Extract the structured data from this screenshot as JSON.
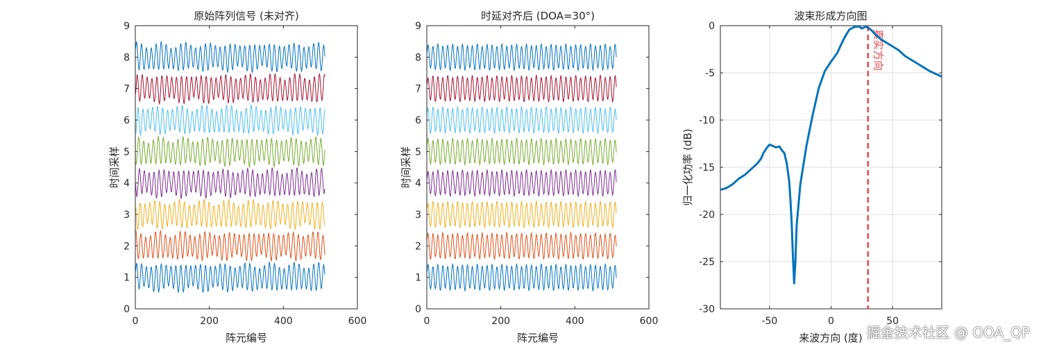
{
  "colors": {
    "axis": "#262626",
    "grid": "#dfdfdf",
    "trace_palette": [
      "#0072BD",
      "#D95319",
      "#EDB120",
      "#7E2F8E",
      "#77AC30",
      "#4DBEEE",
      "#A2142F",
      "#0072BD"
    ],
    "beam": "#0072BD",
    "true_dir": "#E8474B"
  },
  "watermark": "掘金技术社区 @ OOA_QP",
  "chart_data": [
    {
      "type": "line",
      "title": "原始阵列信号 (未对齐)",
      "xlabel": "阵元编号",
      "ylabel": "时间采样",
      "xlim": [
        0,
        600
      ],
      "ylim": [
        0,
        9
      ],
      "xticks": [
        "0",
        "200",
        "400",
        "600"
      ],
      "yticks": [
        "0",
        "1",
        "2",
        "3",
        "4",
        "5",
        "6",
        "7",
        "8",
        "9"
      ],
      "grid": false,
      "series": [
        {
          "offset": 1,
          "amplitude": 0.38,
          "phase": 0.0,
          "x_range": [
            1,
            512
          ]
        },
        {
          "offset": 2,
          "amplitude": 0.38,
          "phase": 0.9,
          "x_range": [
            1,
            512
          ]
        },
        {
          "offset": 3,
          "amplitude": 0.38,
          "phase": 1.8,
          "x_range": [
            1,
            512
          ]
        },
        {
          "offset": 4,
          "amplitude": 0.38,
          "phase": 2.7,
          "x_range": [
            1,
            512
          ]
        },
        {
          "offset": 5,
          "amplitude": 0.38,
          "phase": 3.6,
          "x_range": [
            1,
            512
          ]
        },
        {
          "offset": 6,
          "amplitude": 0.38,
          "phase": 4.5,
          "x_range": [
            1,
            512
          ]
        },
        {
          "offset": 7,
          "amplitude": 0.38,
          "phase": 5.4,
          "x_range": [
            1,
            512
          ]
        },
        {
          "offset": 8,
          "amplitude": 0.38,
          "phase": 6.3,
          "x_range": [
            1,
            512
          ]
        }
      ]
    },
    {
      "type": "line",
      "title": "时延对齐后 (DOA=30°)",
      "xlabel": "阵元编号",
      "ylabel": "时间采样",
      "xlim": [
        0,
        600
      ],
      "ylim": [
        0,
        9
      ],
      "xticks": [
        "0",
        "200",
        "400",
        "600"
      ],
      "yticks": [
        "0",
        "1",
        "2",
        "3",
        "4",
        "5",
        "6",
        "7",
        "8",
        "9"
      ],
      "grid": false,
      "series": [
        {
          "offset": 1,
          "amplitude": 0.38,
          "phase": 0.0,
          "x_range": [
            1,
            512
          ]
        },
        {
          "offset": 2,
          "amplitude": 0.38,
          "phase": 0.0,
          "x_range": [
            1,
            512
          ]
        },
        {
          "offset": 3,
          "amplitude": 0.38,
          "phase": 0.0,
          "x_range": [
            1,
            512
          ]
        },
        {
          "offset": 4,
          "amplitude": 0.38,
          "phase": 0.0,
          "x_range": [
            1,
            512
          ]
        },
        {
          "offset": 5,
          "amplitude": 0.38,
          "phase": 0.0,
          "x_range": [
            1,
            512
          ]
        },
        {
          "offset": 6,
          "amplitude": 0.38,
          "phase": 0.0,
          "x_range": [
            1,
            512
          ]
        },
        {
          "offset": 7,
          "amplitude": 0.38,
          "phase": 0.0,
          "x_range": [
            1,
            512
          ]
        },
        {
          "offset": 8,
          "amplitude": 0.38,
          "phase": 0.0,
          "x_range": [
            1,
            512
          ]
        }
      ]
    },
    {
      "type": "line",
      "title": "波束形成方向图",
      "xlabel": "来波方向 (度)",
      "ylabel": "归一化功率 (dB)",
      "xlim": [
        -90,
        90
      ],
      "ylim": [
        -30,
        0
      ],
      "xticks": [
        {
          "v": -50,
          "t": "-50"
        },
        {
          "v": 0,
          "t": "0"
        },
        {
          "v": 50,
          "t": "50"
        }
      ],
      "yticks": [
        {
          "v": 0,
          "t": "0"
        },
        {
          "v": -5,
          "t": "-5"
        },
        {
          "v": -10,
          "t": "-10"
        },
        {
          "v": -15,
          "t": "-15"
        },
        {
          "v": -20,
          "t": "-20"
        },
        {
          "v": -25,
          "t": "-25"
        },
        {
          "v": -30,
          "t": "-30"
        }
      ],
      "grid": true,
      "series": [
        {
          "name": "",
          "x": [
            -90,
            -85,
            -80,
            -75,
            -70,
            -65,
            -60,
            -57,
            -55,
            -52,
            -50,
            -48,
            -45,
            -42,
            -40,
            -38,
            -36,
            -34,
            -33,
            -32,
            -31,
            -30,
            -29,
            -28,
            -25,
            -20,
            -15,
            -10,
            -5,
            0,
            5,
            10,
            13,
            15,
            18,
            20,
            23,
            25,
            28,
            30,
            33,
            35,
            40,
            45,
            50,
            55,
            60,
            65,
            70,
            75,
            80,
            85,
            90
          ],
          "y": [
            -17.4,
            -17.2,
            -16.8,
            -16.2,
            -15.8,
            -15.2,
            -14.6,
            -14.1,
            -13.5,
            -12.9,
            -12.6,
            -12.7,
            -12.9,
            -12.8,
            -13.2,
            -13.5,
            -14.6,
            -16.5,
            -18.5,
            -21.0,
            -24.5,
            -27.3,
            -25.0,
            -21.2,
            -16.8,
            -12.7,
            -9.5,
            -6.6,
            -4.8,
            -3.8,
            -2.9,
            -1.5,
            -0.8,
            -0.4,
            -0.2,
            -0.1,
            -0.1,
            -0.3,
            -0.1,
            -0.2,
            -0.5,
            -0.8,
            -1.4,
            -1.8,
            -2.2,
            -2.6,
            -3.2,
            -3.6,
            -4.0,
            -4.4,
            -4.8,
            -5.1,
            -5.4
          ]
        }
      ],
      "annotations": [
        {
          "type": "vline",
          "x": 30,
          "label": "真实方向"
        }
      ]
    }
  ]
}
